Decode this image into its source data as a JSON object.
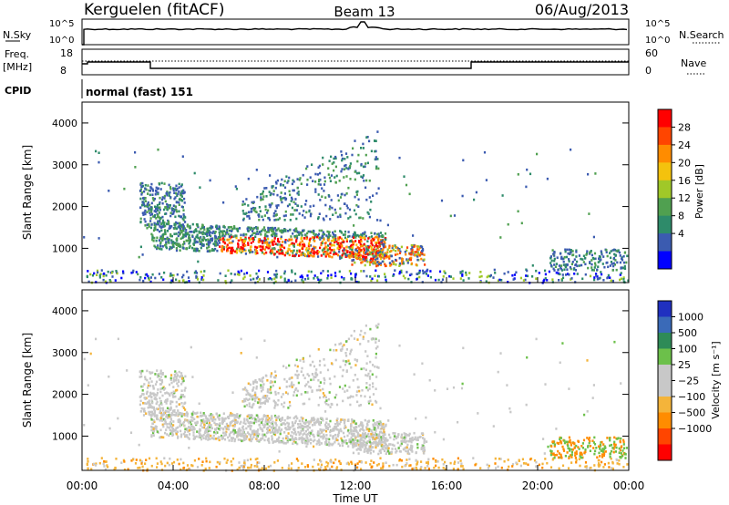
{
  "header": {
    "station": "Kerguelen (fitACF)",
    "beam": "Beam 13",
    "date": "06/Aug/2013"
  },
  "noise_panel": {
    "left_label": "N.Sky",
    "right_label": "N.Search",
    "left_ticks": [
      "10^5",
      "10^0"
    ],
    "right_ticks": [
      "10^5",
      "10^0"
    ]
  },
  "freq_panel": {
    "left_label": "Freq.",
    "left_unit": "[MHz]",
    "left_ticks": [
      "18",
      "8"
    ],
    "right_label": "Nave",
    "right_ticks": [
      "60",
      "0"
    ]
  },
  "cpid_panel": {
    "label": "CPID",
    "mode": "normal (fast) 151"
  },
  "chart_data": [
    {
      "type": "heatmap",
      "name": "power",
      "ylabel": "Slant Range [km]",
      "ylim": [
        180,
        4500
      ],
      "yticks": [
        1000,
        2000,
        3000,
        4000
      ],
      "xlim": [
        "00:00",
        "24:00"
      ],
      "colorbar": {
        "label": "Power [dB]",
        "ticks": [
          "28",
          "24",
          "20",
          "16",
          "12",
          "8",
          "4"
        ],
        "colors": [
          "#ff0000",
          "#ff4500",
          "#ff8c00",
          "#f4c20d",
          "#a0c828",
          "#50a050",
          "#2e8b6a",
          "#3b5bb0",
          "#0000ff"
        ]
      }
    },
    {
      "type": "heatmap",
      "name": "velocity",
      "ylabel": "Slant Range [km]",
      "ylim": [
        180,
        4500
      ],
      "yticks": [
        1000,
        2000,
        3000,
        4000
      ],
      "xlim": [
        "00:00",
        "24:00"
      ],
      "colorbar": {
        "label": "Velocity [m s⁻¹]",
        "ticks": [
          "1000",
          "500",
          "100",
          "25",
          "−25",
          "−100",
          "−500",
          "−1000"
        ],
        "colors": [
          "#2030c0",
          "#3a6ab8",
          "#2e8b57",
          "#6cc04a",
          "#c8c8c8",
          "#c8c8c8",
          "#f4b43a",
          "#ff8c00",
          "#ff4500",
          "#ff0000"
        ]
      }
    }
  ],
  "time_axis": {
    "label": "Time UT",
    "ticks": [
      "00:00",
      "04:00",
      "08:00",
      "12:00",
      "16:00",
      "20:00",
      "00:00"
    ]
  }
}
